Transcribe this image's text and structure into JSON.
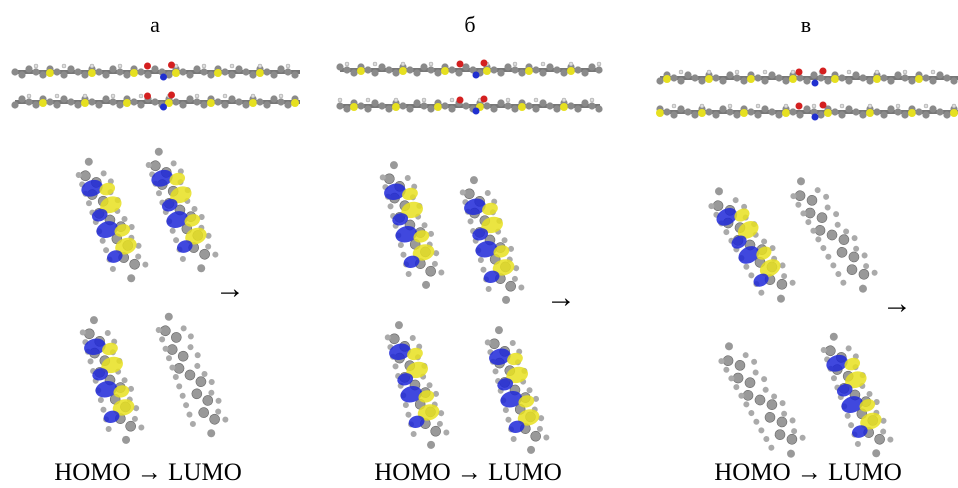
{
  "panels": [
    {
      "label": "а",
      "arrow": "→",
      "caption": "HOMO → LUMO"
    },
    {
      "label": "б",
      "arrow": "→",
      "caption": "HOMO → LUMO"
    },
    {
      "label": "в",
      "arrow": "→",
      "caption": "HOMO → LUMO"
    }
  ]
}
